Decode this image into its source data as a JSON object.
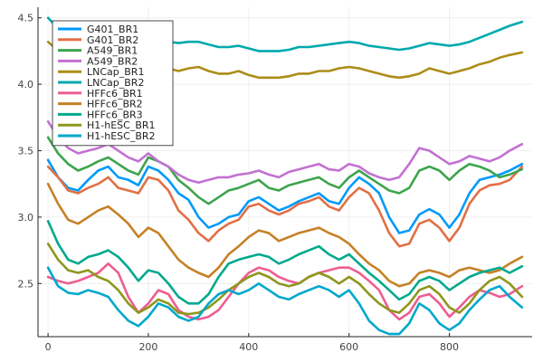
{
  "chart_data": {
    "type": "line",
    "title": "",
    "xlabel": "",
    "ylabel": "",
    "xlim": [
      -20,
      965
    ],
    "ylim": [
      2.1,
      4.58
    ],
    "xticks": [
      0,
      200,
      400,
      600,
      800
    ],
    "yticks": [
      2.5,
      3.0,
      3.5,
      4.0,
      4.5
    ],
    "grid": true,
    "legend_position": "top-left",
    "series": [
      {
        "name": "G401_BR1",
        "color": "#009AFA",
        "x": [
          0,
          20,
          40,
          60,
          80,
          100,
          120,
          140,
          160,
          180,
          200,
          220,
          240,
          260,
          280,
          300,
          320,
          340,
          360,
          380,
          400,
          420,
          440,
          460,
          480,
          500,
          520,
          540,
          560,
          580,
          600,
          620,
          640,
          660,
          680,
          700,
          720,
          740,
          760,
          780,
          800,
          820,
          840,
          860,
          880,
          900,
          920,
          945
        ],
        "values": [
          3.43,
          3.3,
          3.22,
          3.2,
          3.28,
          3.35,
          3.38,
          3.3,
          3.28,
          3.24,
          3.38,
          3.35,
          3.28,
          3.18,
          3.13,
          3.0,
          2.92,
          2.95,
          3.0,
          3.02,
          3.12,
          3.15,
          3.1,
          3.05,
          3.08,
          3.12,
          3.15,
          3.18,
          3.12,
          3.1,
          3.22,
          3.3,
          3.25,
          3.18,
          3.0,
          2.88,
          2.9,
          3.02,
          3.06,
          3.02,
          2.92,
          3.02,
          3.18,
          3.28,
          3.3,
          3.32,
          3.35,
          3.4
        ]
      },
      {
        "name": "G401_BR2",
        "color": "#E26F46",
        "x": [
          0,
          20,
          40,
          60,
          80,
          100,
          120,
          140,
          160,
          180,
          200,
          220,
          240,
          260,
          280,
          300,
          320,
          340,
          360,
          380,
          400,
          420,
          440,
          460,
          480,
          500,
          520,
          540,
          560,
          580,
          600,
          620,
          640,
          660,
          680,
          700,
          720,
          740,
          760,
          780,
          800,
          820,
          840,
          860,
          880,
          900,
          920,
          945
        ],
        "values": [
          3.38,
          3.3,
          3.2,
          3.18,
          3.22,
          3.25,
          3.3,
          3.22,
          3.2,
          3.18,
          3.3,
          3.28,
          3.2,
          3.05,
          2.98,
          2.88,
          2.82,
          2.9,
          2.95,
          2.98,
          3.08,
          3.1,
          3.05,
          3.02,
          3.05,
          3.1,
          3.12,
          3.15,
          3.08,
          3.05,
          3.15,
          3.22,
          3.18,
          3.05,
          2.88,
          2.78,
          2.8,
          2.95,
          2.98,
          2.92,
          2.82,
          2.92,
          3.1,
          3.2,
          3.24,
          3.25,
          3.28,
          3.38
        ]
      },
      {
        "name": "A549_BR1",
        "color": "#3DA44D",
        "x": [
          0,
          20,
          40,
          60,
          80,
          100,
          120,
          140,
          160,
          180,
          200,
          220,
          240,
          260,
          280,
          300,
          320,
          340,
          360,
          380,
          400,
          420,
          440,
          460,
          480,
          500,
          520,
          540,
          560,
          580,
          600,
          620,
          640,
          660,
          680,
          700,
          720,
          740,
          760,
          780,
          800,
          820,
          840,
          860,
          880,
          900,
          920,
          945
        ],
        "values": [
          3.6,
          3.48,
          3.4,
          3.35,
          3.38,
          3.42,
          3.45,
          3.4,
          3.35,
          3.32,
          3.45,
          3.42,
          3.38,
          3.28,
          3.22,
          3.15,
          3.1,
          3.15,
          3.2,
          3.22,
          3.25,
          3.28,
          3.22,
          3.2,
          3.24,
          3.26,
          3.28,
          3.3,
          3.25,
          3.22,
          3.3,
          3.35,
          3.3,
          3.25,
          3.2,
          3.18,
          3.22,
          3.35,
          3.38,
          3.35,
          3.28,
          3.35,
          3.4,
          3.38,
          3.35,
          3.3,
          3.32,
          3.36
        ]
      },
      {
        "name": "A549_BR2",
        "color": "#C271D2",
        "x": [
          0,
          20,
          40,
          60,
          80,
          100,
          120,
          140,
          160,
          180,
          200,
          220,
          240,
          260,
          280,
          300,
          320,
          340,
          360,
          380,
          400,
          420,
          440,
          460,
          480,
          500,
          520,
          540,
          560,
          580,
          600,
          620,
          640,
          660,
          680,
          700,
          720,
          740,
          760,
          780,
          800,
          820,
          840,
          860,
          880,
          900,
          920,
          945
        ],
        "values": [
          3.72,
          3.6,
          3.52,
          3.48,
          3.5,
          3.52,
          3.55,
          3.5,
          3.45,
          3.42,
          3.48,
          3.42,
          3.38,
          3.32,
          3.28,
          3.26,
          3.28,
          3.3,
          3.3,
          3.32,
          3.33,
          3.35,
          3.32,
          3.3,
          3.34,
          3.36,
          3.38,
          3.4,
          3.36,
          3.35,
          3.4,
          3.38,
          3.33,
          3.3,
          3.28,
          3.3,
          3.4,
          3.52,
          3.5,
          3.45,
          3.4,
          3.42,
          3.46,
          3.44,
          3.42,
          3.45,
          3.5,
          3.55
        ]
      },
      {
        "name": "LNCap_BR1",
        "color": "#AC8D18",
        "x": [
          0,
          20,
          40,
          60,
          80,
          100,
          120,
          140,
          160,
          180,
          200,
          220,
          240,
          260,
          280,
          300,
          320,
          340,
          360,
          380,
          400,
          420,
          440,
          460,
          480,
          500,
          520,
          540,
          560,
          580,
          600,
          620,
          640,
          660,
          680,
          700,
          720,
          740,
          760,
          780,
          800,
          820,
          840,
          860,
          880,
          900,
          920,
          945
        ],
        "values": [
          4.32,
          4.25,
          4.18,
          4.16,
          4.15,
          4.18,
          4.2,
          4.17,
          4.15,
          4.12,
          4.15,
          4.13,
          4.12,
          4.1,
          4.12,
          4.13,
          4.1,
          4.08,
          4.08,
          4.1,
          4.07,
          4.05,
          4.05,
          4.05,
          4.06,
          4.08,
          4.08,
          4.1,
          4.1,
          4.12,
          4.13,
          4.12,
          4.1,
          4.08,
          4.06,
          4.05,
          4.06,
          4.08,
          4.12,
          4.1,
          4.08,
          4.1,
          4.12,
          4.15,
          4.17,
          4.2,
          4.22,
          4.24
        ]
      },
      {
        "name": "LNCap_BR2",
        "color": "#00A9AD",
        "x": [
          0,
          20,
          40,
          60,
          80,
          100,
          120,
          140,
          160,
          180,
          200,
          220,
          240,
          260,
          280,
          300,
          320,
          340,
          360,
          380,
          400,
          420,
          440,
          460,
          480,
          500,
          520,
          540,
          560,
          580,
          600,
          620,
          640,
          660,
          680,
          700,
          720,
          740,
          760,
          780,
          800,
          820,
          840,
          860,
          880,
          900,
          920,
          945
        ],
        "values": [
          4.5,
          4.42,
          4.38,
          4.36,
          4.35,
          4.37,
          4.38,
          4.36,
          4.35,
          4.33,
          4.34,
          4.33,
          4.32,
          4.31,
          4.32,
          4.32,
          4.3,
          4.28,
          4.28,
          4.29,
          4.27,
          4.25,
          4.25,
          4.25,
          4.26,
          4.28,
          4.28,
          4.29,
          4.3,
          4.31,
          4.32,
          4.31,
          4.29,
          4.28,
          4.27,
          4.26,
          4.27,
          4.29,
          4.31,
          4.3,
          4.29,
          4.3,
          4.32,
          4.35,
          4.38,
          4.41,
          4.44,
          4.47
        ]
      },
      {
        "name": "HFFc6_BR1",
        "color": "#ED5D92",
        "x": [
          0,
          20,
          40,
          60,
          80,
          100,
          120,
          140,
          160,
          180,
          200,
          220,
          240,
          260,
          280,
          300,
          320,
          340,
          360,
          380,
          400,
          420,
          440,
          460,
          480,
          500,
          520,
          540,
          560,
          580,
          600,
          620,
          640,
          660,
          680,
          700,
          720,
          740,
          760,
          780,
          800,
          820,
          840,
          860,
          880,
          900,
          920,
          945
        ],
        "values": [
          2.55,
          2.52,
          2.5,
          2.52,
          2.55,
          2.58,
          2.65,
          2.58,
          2.4,
          2.28,
          2.35,
          2.45,
          2.42,
          2.3,
          2.25,
          2.23,
          2.25,
          2.3,
          2.4,
          2.5,
          2.58,
          2.62,
          2.6,
          2.55,
          2.52,
          2.5,
          2.55,
          2.58,
          2.6,
          2.62,
          2.62,
          2.58,
          2.52,
          2.45,
          2.3,
          2.23,
          2.28,
          2.4,
          2.42,
          2.35,
          2.25,
          2.32,
          2.4,
          2.45,
          2.43,
          2.4,
          2.42,
          2.48
        ]
      },
      {
        "name": "HFFc6_BR2",
        "color": "#C68125",
        "x": [
          0,
          20,
          40,
          60,
          80,
          100,
          120,
          140,
          160,
          180,
          200,
          220,
          240,
          260,
          280,
          300,
          320,
          340,
          360,
          380,
          400,
          420,
          440,
          460,
          480,
          500,
          520,
          540,
          560,
          580,
          600,
          620,
          640,
          660,
          680,
          700,
          720,
          740,
          760,
          780,
          800,
          820,
          840,
          860,
          880,
          900,
          920,
          945
        ],
        "values": [
          3.25,
          3.1,
          2.98,
          2.95,
          3.0,
          3.05,
          3.08,
          3.02,
          2.95,
          2.85,
          2.92,
          2.88,
          2.78,
          2.68,
          2.62,
          2.58,
          2.55,
          2.62,
          2.72,
          2.78,
          2.85,
          2.9,
          2.88,
          2.82,
          2.85,
          2.88,
          2.9,
          2.92,
          2.88,
          2.85,
          2.8,
          2.72,
          2.65,
          2.6,
          2.52,
          2.48,
          2.5,
          2.58,
          2.6,
          2.58,
          2.55,
          2.6,
          2.62,
          2.6,
          2.58,
          2.6,
          2.65,
          2.7
        ]
      },
      {
        "name": "HFFc6_BR3",
        "color": "#00A98D",
        "x": [
          0,
          20,
          40,
          60,
          80,
          100,
          120,
          140,
          160,
          180,
          200,
          220,
          240,
          260,
          280,
          300,
          320,
          340,
          360,
          380,
          400,
          420,
          440,
          460,
          480,
          500,
          520,
          540,
          560,
          580,
          600,
          620,
          640,
          660,
          680,
          700,
          720,
          740,
          760,
          780,
          800,
          820,
          840,
          860,
          880,
          900,
          920,
          945
        ],
        "values": [
          2.97,
          2.8,
          2.68,
          2.65,
          2.7,
          2.72,
          2.75,
          2.7,
          2.62,
          2.52,
          2.6,
          2.58,
          2.5,
          2.4,
          2.35,
          2.35,
          2.42,
          2.55,
          2.65,
          2.68,
          2.7,
          2.72,
          2.7,
          2.65,
          2.68,
          2.72,
          2.75,
          2.78,
          2.72,
          2.68,
          2.72,
          2.65,
          2.58,
          2.52,
          2.45,
          2.38,
          2.42,
          2.52,
          2.55,
          2.52,
          2.45,
          2.5,
          2.55,
          2.58,
          2.6,
          2.62,
          2.58,
          2.63
        ]
      },
      {
        "name": "H1-hESC_BR1",
        "color": "#8E971D",
        "x": [
          0,
          20,
          40,
          60,
          80,
          100,
          120,
          140,
          160,
          180,
          200,
          220,
          240,
          260,
          280,
          300,
          320,
          340,
          360,
          380,
          400,
          420,
          440,
          460,
          480,
          500,
          520,
          540,
          560,
          580,
          600,
          620,
          640,
          660,
          680,
          700,
          720,
          740,
          760,
          780,
          800,
          820,
          840,
          860,
          880,
          900,
          920,
          945
        ],
        "values": [
          2.8,
          2.68,
          2.6,
          2.58,
          2.6,
          2.55,
          2.52,
          2.45,
          2.35,
          2.28,
          2.32,
          2.38,
          2.35,
          2.28,
          2.27,
          2.28,
          2.32,
          2.38,
          2.45,
          2.5,
          2.55,
          2.58,
          2.55,
          2.5,
          2.48,
          2.5,
          2.55,
          2.58,
          2.55,
          2.5,
          2.55,
          2.5,
          2.42,
          2.35,
          2.3,
          2.28,
          2.35,
          2.45,
          2.48,
          2.42,
          2.32,
          2.28,
          2.35,
          2.45,
          2.52,
          2.55,
          2.5,
          2.4
        ]
      },
      {
        "name": "H1-hESC_BR2",
        "color": "#00A8CB",
        "x": [
          0,
          20,
          40,
          60,
          80,
          100,
          120,
          140,
          160,
          180,
          200,
          220,
          240,
          260,
          280,
          300,
          320,
          340,
          360,
          380,
          400,
          420,
          440,
          460,
          480,
          500,
          520,
          540,
          560,
          580,
          600,
          620,
          640,
          660,
          680,
          700,
          720,
          740,
          760,
          780,
          800,
          820,
          840,
          860,
          880,
          900,
          920,
          945
        ],
        "values": [
          2.62,
          2.48,
          2.43,
          2.42,
          2.45,
          2.43,
          2.4,
          2.3,
          2.22,
          2.18,
          2.25,
          2.35,
          2.32,
          2.25,
          2.22,
          2.25,
          2.35,
          2.42,
          2.45,
          2.42,
          2.45,
          2.5,
          2.45,
          2.4,
          2.38,
          2.42,
          2.45,
          2.48,
          2.45,
          2.4,
          2.45,
          2.35,
          2.22,
          2.15,
          2.12,
          2.12,
          2.2,
          2.35,
          2.3,
          2.2,
          2.15,
          2.2,
          2.3,
          2.38,
          2.45,
          2.48,
          2.4,
          2.32
        ]
      }
    ]
  }
}
